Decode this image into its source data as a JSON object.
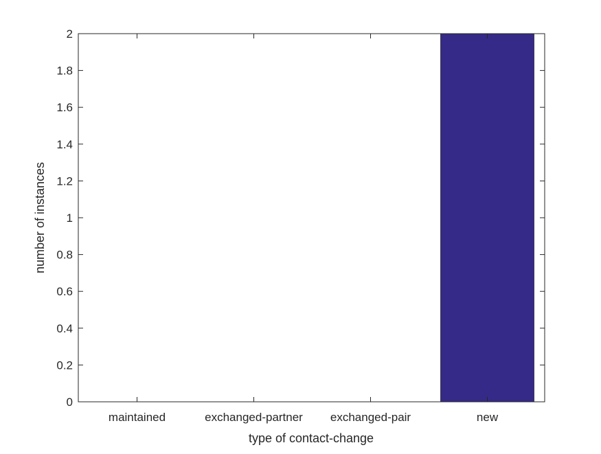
{
  "chart_data": {
    "type": "bar",
    "categories": [
      "maintained",
      "exchanged-partner",
      "exchanged-pair",
      "new"
    ],
    "values": [
      0,
      0,
      0,
      2
    ],
    "xlabel": "type of contact-change",
    "ylabel": "number of instances",
    "ylim": [
      0,
      2
    ],
    "yticks": [
      "0",
      "0.2",
      "0.4",
      "0.6",
      "0.8",
      "1",
      "1.2",
      "1.4",
      "1.6",
      "1.8",
      "2"
    ],
    "grid": false,
    "bar_color": "#352a87"
  }
}
